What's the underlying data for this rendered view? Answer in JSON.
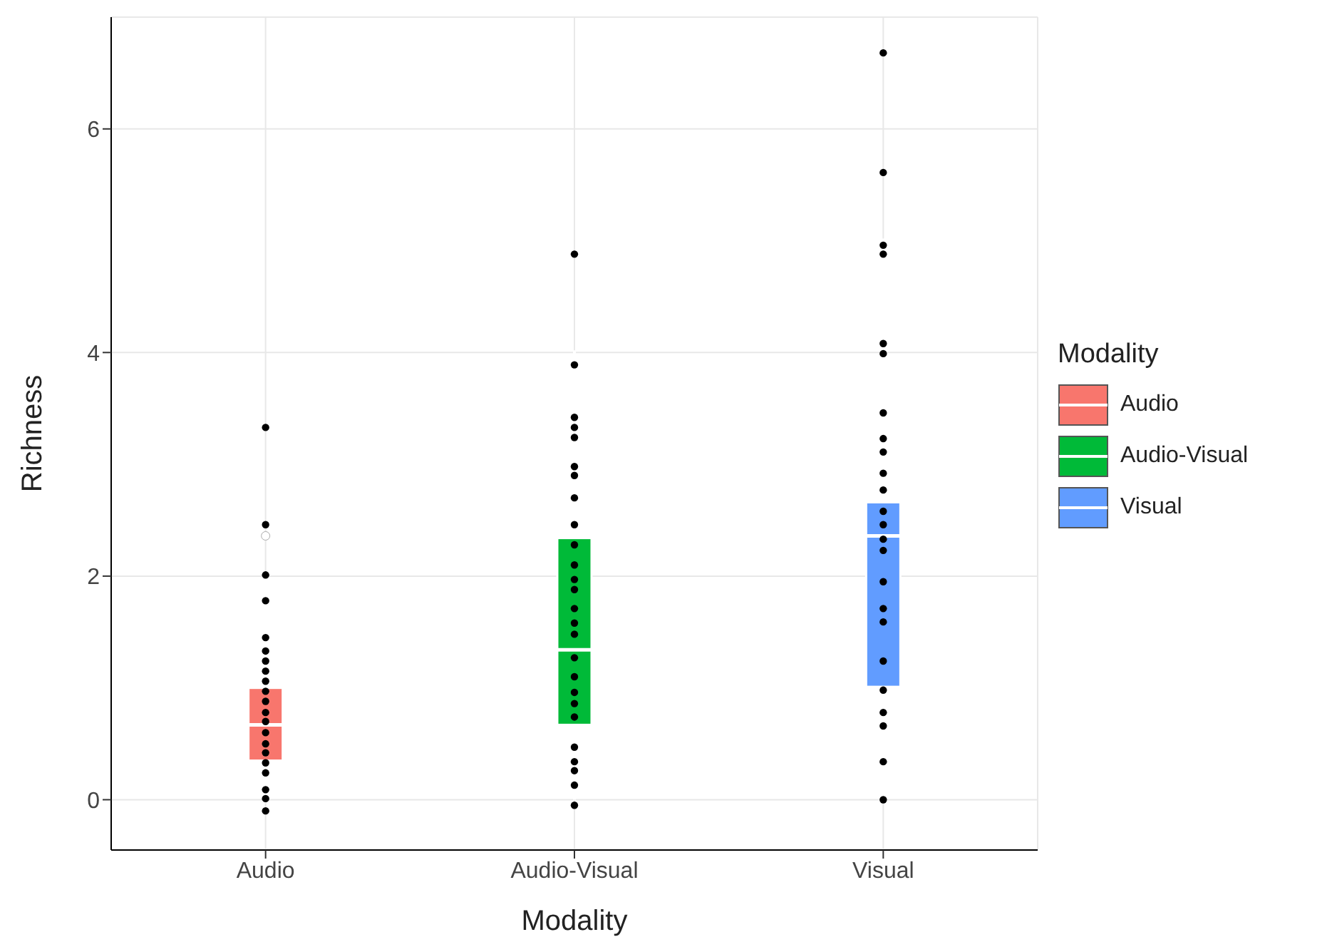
{
  "chart_data": {
    "type": "box",
    "xlabel": "Modality",
    "ylabel": "Richness",
    "legend_title": "Modality",
    "legend": "right",
    "grid": true,
    "categories": [
      "Audio",
      "Audio-Visual",
      "Visual"
    ],
    "ylim": [
      -0.45,
      7.0
    ],
    "yticks": [
      0,
      2,
      4,
      6
    ],
    "series": [
      {
        "name": "Audio",
        "color": "#f8766d",
        "boxes": [
          {
            "low": 0,
            "q1": 0.35,
            "median": 0.67,
            "q3": 1.0,
            "high": 2.02,
            "outliers": [
              2.36
            ]
          },
          null,
          null
        ]
      },
      {
        "name": "Audio-Visual",
        "color": "#00ba38",
        "boxes": [
          null,
          {
            "low": 0,
            "q1": 0.67,
            "median": 1.34,
            "q3": 2.34,
            "high": 4.02
          },
          null
        ]
      },
      {
        "name": "Visual",
        "color": "#619cff",
        "boxes": [
          null,
          null,
          {
            "low": 0,
            "q1": 1.01,
            "median": 2.36,
            "q3": 2.66,
            "high": 5.02
          }
        ]
      },
      {
        "type": "scatter",
        "color": "#000000",
        "x": [
          "Audio",
          "Audio",
          "Audio",
          "Audio",
          "Audio",
          "Audio",
          "Audio",
          "Audio",
          "Audio",
          "Audio",
          "Audio",
          "Audio",
          "Audio",
          "Audio",
          "Audio",
          "Audio",
          "Audio",
          "Audio",
          "Audio",
          "Audio",
          "Audio"
        ],
        "values": [
          3.33,
          2.46,
          2.01,
          1.78,
          1.45,
          1.33,
          1.24,
          1.15,
          1.06,
          0.97,
          0.88,
          0.78,
          0.7,
          0.6,
          0.5,
          0.42,
          0.33,
          0.24,
          0.09,
          0.01,
          -0.1
        ]
      },
      {
        "type": "scatter",
        "color": "#000000",
        "x": [
          "Audio-Visual",
          "Audio-Visual",
          "Audio-Visual",
          "Audio-Visual",
          "Audio-Visual",
          "Audio-Visual",
          "Audio-Visual",
          "Audio-Visual",
          "Audio-Visual",
          "Audio-Visual",
          "Audio-Visual",
          "Audio-Visual",
          "Audio-Visual",
          "Audio-Visual",
          "Audio-Visual",
          "Audio-Visual",
          "Audio-Visual",
          "Audio-Visual",
          "Audio-Visual",
          "Audio-Visual",
          "Audio-Visual",
          "Audio-Visual",
          "Audio-Visual",
          "Audio-Visual",
          "Audio-Visual",
          "Audio-Visual"
        ],
        "values": [
          4.88,
          3.89,
          3.42,
          3.33,
          3.24,
          2.98,
          2.9,
          2.7,
          2.46,
          2.28,
          2.1,
          1.97,
          1.88,
          1.71,
          1.58,
          1.48,
          1.27,
          1.1,
          0.96,
          0.86,
          0.74,
          0.47,
          0.34,
          0.26,
          0.13,
          -0.05
        ]
      },
      {
        "type": "scatter",
        "color": "#000000",
        "x": [
          "Visual",
          "Visual",
          "Visual",
          "Visual",
          "Visual",
          "Visual",
          "Visual",
          "Visual",
          "Visual",
          "Visual",
          "Visual",
          "Visual",
          "Visual",
          "Visual",
          "Visual",
          "Visual",
          "Visual",
          "Visual",
          "Visual",
          "Visual",
          "Visual",
          "Visual",
          "Visual",
          "Visual"
        ],
        "values": [
          6.68,
          5.61,
          4.96,
          4.88,
          4.08,
          3.99,
          3.46,
          3.23,
          3.11,
          2.92,
          2.77,
          2.58,
          2.46,
          2.33,
          2.23,
          1.95,
          1.71,
          1.59,
          1.24,
          0.98,
          0.78,
          0.66,
          0.34,
          0.0
        ]
      }
    ]
  }
}
